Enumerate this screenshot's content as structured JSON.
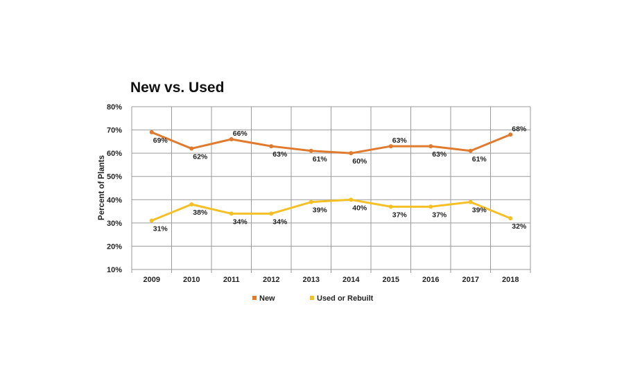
{
  "chart_data": {
    "type": "line",
    "title": "New vs. Used",
    "ylabel": "Percent of Plants",
    "xlabel": "",
    "categories": [
      "2009",
      "2010",
      "2011",
      "2012",
      "2013",
      "2014",
      "2015",
      "2016",
      "2017",
      "2018"
    ],
    "yticks": [
      "80%",
      "70%",
      "60%",
      "50%",
      "40%",
      "30%",
      "20%",
      "10%"
    ],
    "ylim": [
      10,
      80
    ],
    "grid": true,
    "legend": "bottom",
    "series": [
      {
        "name": "New",
        "color": "#e07a2e",
        "values": [
          69,
          62,
          66,
          63,
          61,
          60,
          63,
          63,
          61,
          68
        ],
        "labels": [
          "69%",
          "62%",
          "66%",
          "63%",
          "61%",
          "60%",
          "63%",
          "63%",
          "61%",
          "68%"
        ]
      },
      {
        "name": "Used or Rebuilt",
        "color": "#f4c025",
        "values": [
          31,
          38,
          34,
          34,
          39,
          40,
          37,
          37,
          39,
          32
        ],
        "labels": [
          "31%",
          "38%",
          "34%",
          "34%",
          "39%",
          "40%",
          "37%",
          "37%",
          "39%",
          "32%"
        ]
      }
    ]
  }
}
